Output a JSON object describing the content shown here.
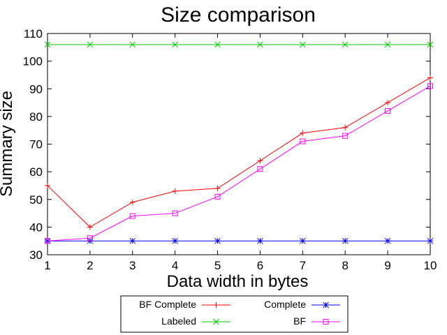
{
  "chart_data": {
    "type": "line",
    "title": "Size comparison",
    "xlabel": "Data width in bytes",
    "ylabel": "Summary size",
    "x": [
      1,
      2,
      3,
      4,
      5,
      6,
      7,
      8,
      9,
      10
    ],
    "xlim": [
      1,
      10
    ],
    "ylim": [
      30,
      110
    ],
    "xticks": [
      "1",
      "2",
      "3",
      "4",
      "5",
      "6",
      "7",
      "8",
      "9",
      "10"
    ],
    "yticks": [
      "30",
      "40",
      "50",
      "60",
      "70",
      "80",
      "90",
      "100",
      "110"
    ],
    "grid": false,
    "legend_position": "bottom",
    "series": [
      {
        "name": "BF Complete",
        "color": "#ff0000",
        "marker": "plus",
        "values": [
          55,
          40,
          49,
          53,
          54,
          64,
          74,
          76,
          85,
          94
        ]
      },
      {
        "name": "Labeled",
        "color": "#00cc00",
        "marker": "x",
        "values": [
          106,
          106,
          106,
          106,
          106,
          106,
          106,
          106,
          106,
          106
        ]
      },
      {
        "name": "Complete",
        "color": "#0000ff",
        "marker": "star",
        "values": [
          35,
          35,
          35,
          35,
          35,
          35,
          35,
          35,
          35,
          35
        ]
      },
      {
        "name": "BF",
        "color": "#ff00ff",
        "marker": "square",
        "values": [
          35,
          36,
          44,
          45,
          51,
          61,
          71,
          73,
          82,
          91
        ]
      }
    ]
  }
}
